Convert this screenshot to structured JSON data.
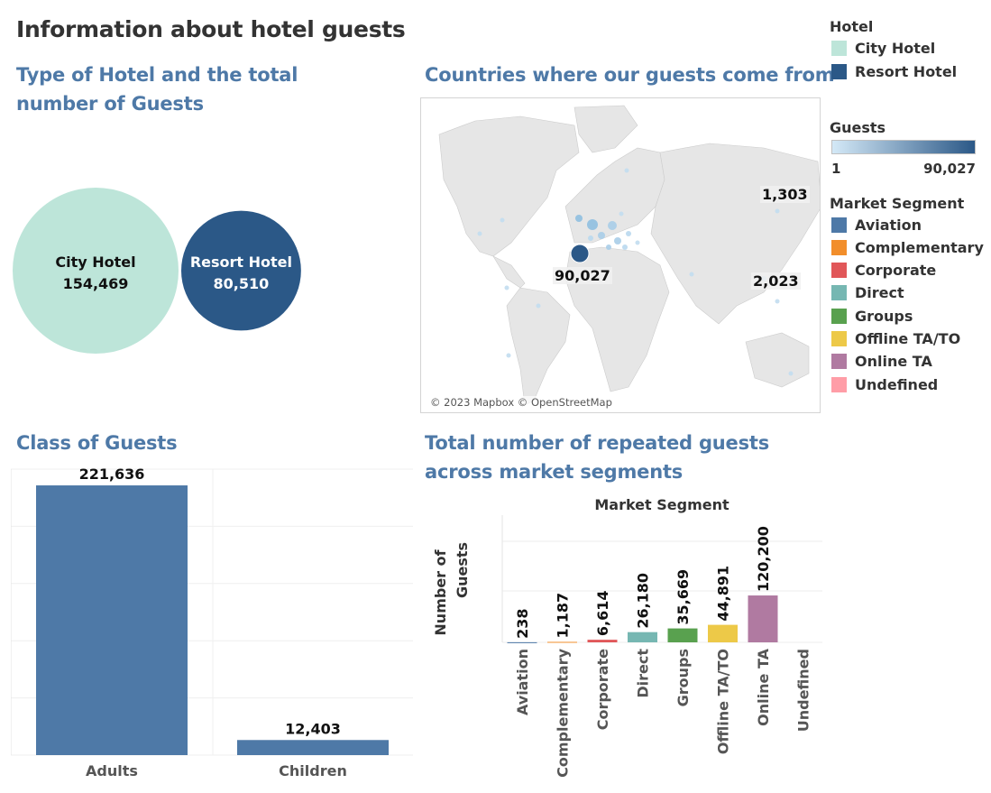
{
  "page_title": "Information about hotel guests",
  "sections": {
    "hotel_type": "Type of Hotel and the total number of Guests",
    "countries": "Countries where our guests come from",
    "class": "Class of Guests",
    "repeated": "Total number of repeated guests across market segments"
  },
  "legends": {
    "hotel": {
      "title": "Hotel",
      "items": [
        {
          "label": "City Hotel",
          "color": "#bde5d9"
        },
        {
          "label": "Resort Hotel",
          "color": "#2b5887"
        }
      ]
    },
    "guests": {
      "title": "Guests",
      "min": "1",
      "max": "90,027",
      "color_low": "#d4e9f7",
      "color_high": "#2b5887"
    },
    "market_segment": {
      "title": "Market Segment",
      "items": [
        {
          "label": "Aviation",
          "color": "#4e79a7"
        },
        {
          "label": "Complementary",
          "color": "#f28e2b"
        },
        {
          "label": "Corporate",
          "color": "#e15759"
        },
        {
          "label": "Direct",
          "color": "#76b7b2"
        },
        {
          "label": "Groups",
          "color": "#59a14f"
        },
        {
          "label": "Offline TA/TO",
          "color": "#edc948"
        },
        {
          "label": "Online TA",
          "color": "#b07aa1"
        },
        {
          "label": "Undefined",
          "color": "#ff9da7"
        }
      ]
    }
  },
  "map": {
    "attribution": "© 2023 Mapbox © OpenStreetMap",
    "labels": [
      {
        "name": "portugal",
        "value": "90,027"
      },
      {
        "name": "china",
        "value": "2,023"
      },
      {
        "name": "russia",
        "value": "1,303"
      }
    ]
  },
  "chart_data": [
    {
      "type": "bubble",
      "categories": [
        "City Hotel",
        "Resort Hotel"
      ],
      "values": [
        154469,
        80510
      ],
      "value_labels": [
        "154,469",
        "80,510"
      ],
      "colors": [
        "#bde5d9",
        "#2b5887"
      ]
    },
    {
      "type": "bar",
      "categories": [
        "Adults",
        "Children"
      ],
      "values": [
        221636,
        12403
      ],
      "value_labels": [
        "221,636",
        "12,403"
      ],
      "ylim": [
        0,
        235000
      ],
      "color": "#4e79a7"
    },
    {
      "type": "bar",
      "title": "Market Segment",
      "ylabel": "Number of Guests",
      "categories": [
        "Aviation",
        "Complementary",
        "Corporate",
        "Direct",
        "Groups",
        "Offline TA/TO",
        "Online TA",
        "Undefined"
      ],
      "values": [
        238,
        1187,
        6614,
        26180,
        35669,
        44891,
        120200,
        0
      ],
      "value_labels": [
        "238",
        "1,187",
        "6,614",
        "26,180",
        "35,669",
        "44,891",
        "120,200",
        ""
      ],
      "colors": [
        "#4e79a7",
        "#f28e2b",
        "#e15759",
        "#76b7b2",
        "#59a14f",
        "#edc948",
        "#b07aa1",
        "#ff9da7"
      ],
      "ylim": [
        0,
        340000
      ]
    },
    {
      "type": "map",
      "title": "Countries where our guests come from",
      "points": [
        {
          "country": "Portugal",
          "value": 90027
        },
        {
          "country": "China",
          "value": 2023
        },
        {
          "country": "Russia",
          "value": 1303
        }
      ]
    }
  ]
}
